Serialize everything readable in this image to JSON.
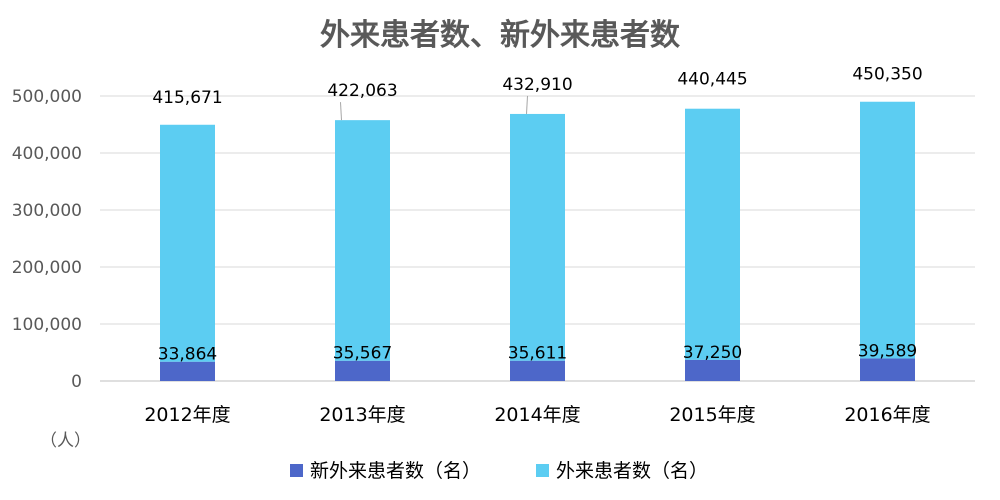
{
  "chart_data": {
    "type": "bar",
    "stacked": true,
    "title": "外来患者数、新外来患者数",
    "ylabel": "（人）",
    "categories": [
      "2012年度",
      "2013年度",
      "2014年度",
      "2015年度",
      "2016年度"
    ],
    "ylim": [
      0,
      500000
    ],
    "yticks": [
      0,
      100000,
      200000,
      300000,
      400000,
      500000
    ],
    "ytick_labels": [
      "0",
      "100,000",
      "200,000",
      "300,000",
      "400,000",
      "500,000"
    ],
    "series": [
      {
        "name": "新外来患者数（名）",
        "color": "#4d67c9",
        "values": [
          33864,
          35567,
          35611,
          37250,
          39589
        ],
        "labels": [
          "33,864",
          "35,567",
          "35,611",
          "37,250",
          "39,589"
        ]
      },
      {
        "name": "外来患者数（名）",
        "color": "#5ccdf2",
        "values": [
          415671,
          422063,
          432910,
          440445,
          450350
        ],
        "labels": [
          "415,671",
          "422,063",
          "432,910",
          "440,445",
          "450,350"
        ]
      }
    ],
    "grid": true,
    "legend_position": "bottom"
  }
}
